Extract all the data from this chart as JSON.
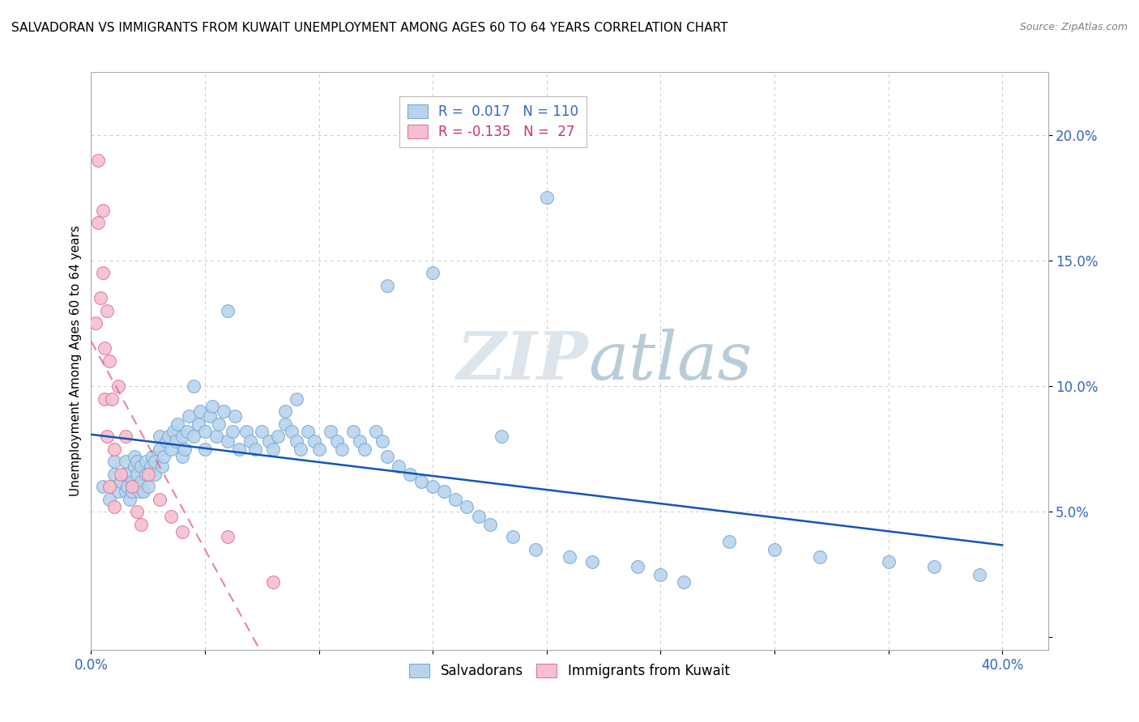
{
  "title": "SALVADORAN VS IMMIGRANTS FROM KUWAIT UNEMPLOYMENT AMONG AGES 60 TO 64 YEARS CORRELATION CHART",
  "source": "Source: ZipAtlas.com",
  "ylabel_label": "Unemployment Among Ages 60 to 64 years",
  "xlim": [
    0.0,
    0.42
  ],
  "ylim": [
    -0.005,
    0.225
  ],
  "blue_color": "#b8d4ed",
  "blue_edge": "#7aaad4",
  "pink_color": "#f5bfcf",
  "pink_edge": "#e07898",
  "line_blue": "#1155bb",
  "line_pink": "#dd6688",
  "watermark_color": "#d0dde8",
  "background_color": "#ffffff",
  "grid_color": "#cccccc",
  "blue_x": [
    0.005,
    0.008,
    0.01,
    0.01,
    0.012,
    0.013,
    0.015,
    0.015,
    0.015,
    0.016,
    0.017,
    0.018,
    0.018,
    0.019,
    0.019,
    0.02,
    0.02,
    0.02,
    0.021,
    0.022,
    0.022,
    0.023,
    0.024,
    0.024,
    0.025,
    0.026,
    0.027,
    0.028,
    0.028,
    0.03,
    0.03,
    0.031,
    0.032,
    0.033,
    0.034,
    0.035,
    0.036,
    0.037,
    0.038,
    0.04,
    0.04,
    0.041,
    0.042,
    0.043,
    0.045,
    0.047,
    0.048,
    0.05,
    0.05,
    0.052,
    0.053,
    0.055,
    0.056,
    0.058,
    0.06,
    0.062,
    0.063,
    0.065,
    0.068,
    0.07,
    0.072,
    0.075,
    0.078,
    0.08,
    0.082,
    0.085,
    0.088,
    0.09,
    0.092,
    0.095,
    0.098,
    0.1,
    0.105,
    0.108,
    0.11,
    0.115,
    0.118,
    0.12,
    0.125,
    0.128,
    0.13,
    0.135,
    0.14,
    0.145,
    0.15,
    0.155,
    0.16,
    0.165,
    0.17,
    0.175,
    0.185,
    0.195,
    0.21,
    0.22,
    0.24,
    0.25,
    0.26,
    0.28,
    0.3,
    0.32,
    0.35,
    0.37,
    0.39,
    0.13,
    0.09,
    0.18,
    0.06,
    0.045,
    0.15,
    0.2,
    0.085
  ],
  "blue_y": [
    0.06,
    0.055,
    0.065,
    0.07,
    0.058,
    0.062,
    0.058,
    0.065,
    0.07,
    0.06,
    0.055,
    0.058,
    0.062,
    0.068,
    0.072,
    0.06,
    0.065,
    0.07,
    0.058,
    0.062,
    0.068,
    0.058,
    0.065,
    0.07,
    0.06,
    0.068,
    0.072,
    0.065,
    0.07,
    0.075,
    0.08,
    0.068,
    0.072,
    0.078,
    0.08,
    0.075,
    0.082,
    0.078,
    0.085,
    0.072,
    0.08,
    0.075,
    0.082,
    0.088,
    0.08,
    0.085,
    0.09,
    0.075,
    0.082,
    0.088,
    0.092,
    0.08,
    0.085,
    0.09,
    0.078,
    0.082,
    0.088,
    0.075,
    0.082,
    0.078,
    0.075,
    0.082,
    0.078,
    0.075,
    0.08,
    0.085,
    0.082,
    0.078,
    0.075,
    0.082,
    0.078,
    0.075,
    0.082,
    0.078,
    0.075,
    0.082,
    0.078,
    0.075,
    0.082,
    0.078,
    0.072,
    0.068,
    0.065,
    0.062,
    0.06,
    0.058,
    0.055,
    0.052,
    0.048,
    0.045,
    0.04,
    0.035,
    0.032,
    0.03,
    0.028,
    0.025,
    0.022,
    0.038,
    0.035,
    0.032,
    0.03,
    0.028,
    0.025,
    0.14,
    0.095,
    0.08,
    0.13,
    0.1,
    0.145,
    0.175,
    0.09
  ],
  "pink_x": [
    0.002,
    0.003,
    0.003,
    0.004,
    0.005,
    0.005,
    0.006,
    0.006,
    0.007,
    0.007,
    0.008,
    0.008,
    0.009,
    0.01,
    0.01,
    0.012,
    0.013,
    0.015,
    0.018,
    0.02,
    0.022,
    0.025,
    0.03,
    0.035,
    0.04,
    0.06,
    0.08
  ],
  "pink_y": [
    0.125,
    0.19,
    0.165,
    0.135,
    0.17,
    0.145,
    0.115,
    0.095,
    0.13,
    0.08,
    0.11,
    0.06,
    0.095,
    0.075,
    0.052,
    0.1,
    0.065,
    0.08,
    0.06,
    0.05,
    0.045,
    0.065,
    0.055,
    0.048,
    0.042,
    0.04,
    0.022
  ]
}
